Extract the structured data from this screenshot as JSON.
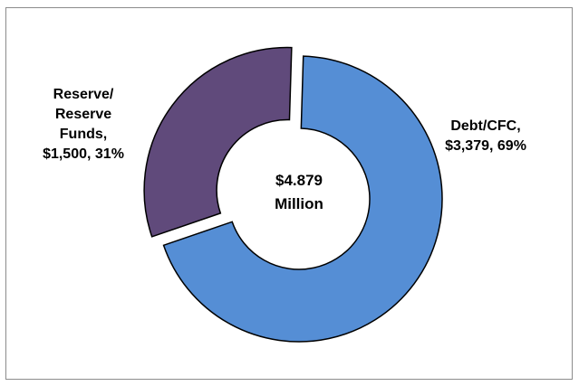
{
  "chart_data": {
    "type": "donut",
    "title": "",
    "center_label": [
      "$4.879",
      "Million"
    ],
    "total": 4879,
    "slices": [
      {
        "name": "Debt/CFC",
        "value": 3379,
        "percent": 69,
        "color": "#558ed5",
        "exploded": false,
        "label_lines": [
          "Debt/CFC,",
          "$3,379, 69%"
        ]
      },
      {
        "name": "Reserve/Reserve Funds",
        "value": 1500,
        "percent": 31,
        "color": "#604a7b",
        "exploded": true,
        "label_lines": [
          "Reserve/",
          "Reserve",
          "Funds,",
          "$1,500, 31%"
        ]
      }
    ],
    "legend": "none"
  }
}
